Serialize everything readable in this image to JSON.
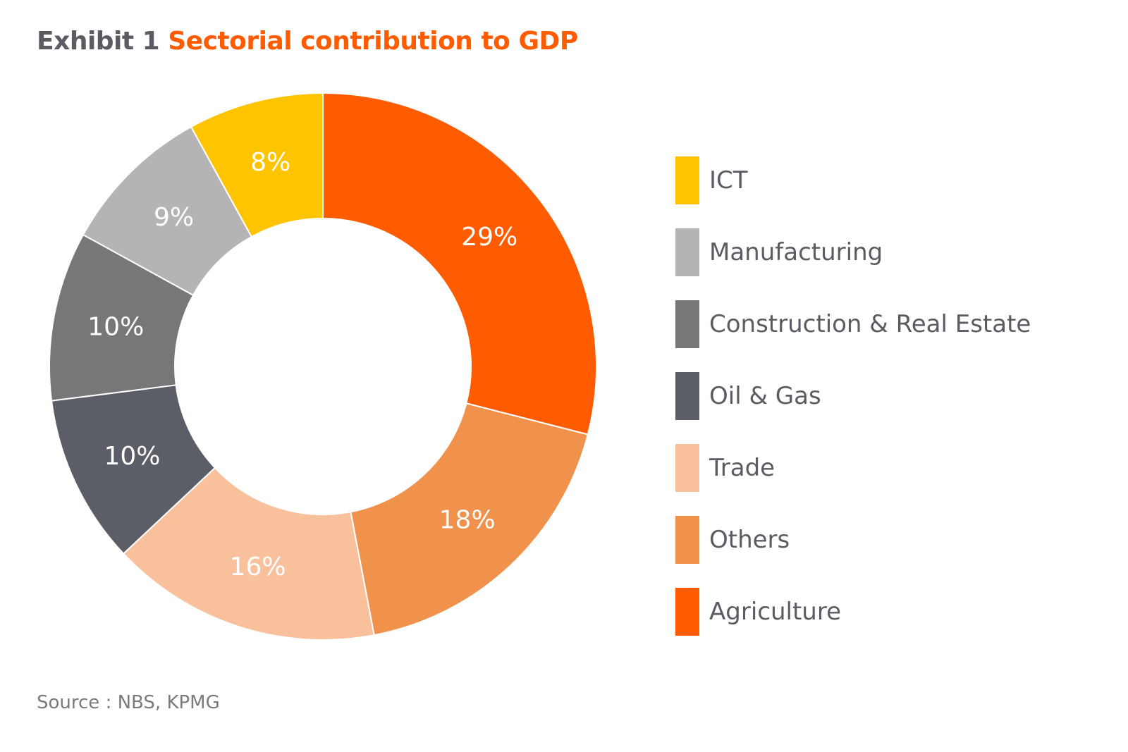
{
  "title": {
    "prefix": "Exhibit 1",
    "main": "Sectorial contribution to GDP"
  },
  "source": "Source : NBS, KPMG",
  "chart_data": {
    "type": "pie",
    "donut": true,
    "legend_position": "right",
    "slices": [
      {
        "name": "Agriculture",
        "value": 29,
        "label": "29%",
        "color": "#ff5b00"
      },
      {
        "name": "Others",
        "value": 18,
        "label": "18%",
        "color": "#f0914c"
      },
      {
        "name": "Trade",
        "value": 16,
        "label": "16%",
        "color": "#f8c09b"
      },
      {
        "name": "Oil & Gas",
        "value": 10,
        "label": "10%",
        "color": "#5b5e66"
      },
      {
        "name": "Construction & Real Estate",
        "value": 10,
        "label": "10%",
        "color": "#787679"
      },
      {
        "name": "Manufacturing",
        "value": 9,
        "label": "9%",
        "color": "#b6b3b6"
      },
      {
        "name": "ICT",
        "value": 8,
        "label": "8%",
        "color": "#ffc400"
      }
    ],
    "legend": [
      {
        "name": "ICT",
        "color": "#ffc400"
      },
      {
        "name": "Manufacturing",
        "color": "#b6b3b6"
      },
      {
        "name": "Construction & Real Estate",
        "color": "#787679"
      },
      {
        "name": "Oil & Gas",
        "color": "#5b5e66"
      },
      {
        "name": "Trade",
        "color": "#f8c09b"
      },
      {
        "name": "Others",
        "color": "#f0914c"
      },
      {
        "name": "Agriculture",
        "color": "#ff5b00"
      }
    ]
  }
}
